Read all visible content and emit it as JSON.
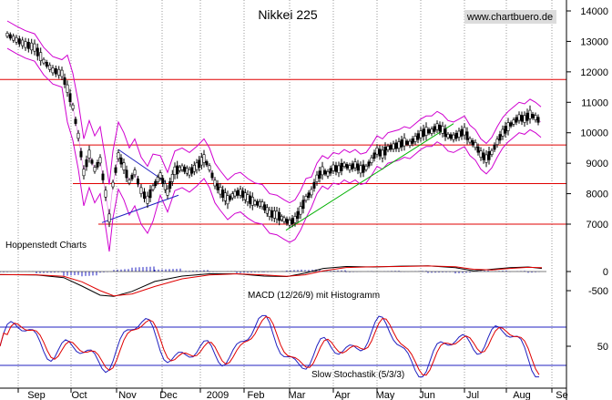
{
  "chart_data": {
    "type": "candlestick",
    "title": "Nikkei 225",
    "source": "www.chartbuero.de",
    "provider": "Hoppenstedt Charts",
    "price_axis": {
      "ticks": [
        7000,
        8000,
        9000,
        10000,
        11000,
        12000,
        13000,
        14000
      ]
    },
    "macd_axis": {
      "ticks": [
        0,
        -500
      ]
    },
    "stoch_axis": {
      "ticks": [
        50
      ]
    },
    "x_labels": [
      "Sep",
      "Oct",
      "Nov",
      "Dec",
      "2009",
      "Feb",
      "Mar",
      "Apr",
      "May",
      "Jun",
      "Jul",
      "Aug",
      "Se"
    ],
    "support_resistance_levels": [
      11750,
      9600,
      8330,
      7000
    ],
    "macd_label": "MACD (12/26/9) mit Histogramm",
    "stoch_label": "Slow Stochastik (5/3/3)",
    "stoch_levels": [
      80,
      20
    ],
    "price_series": [
      [
        8,
        13220
      ],
      [
        18,
        13050
      ],
      [
        28,
        12900
      ],
      [
        38,
        12800
      ],
      [
        48,
        12350
      ],
      [
        58,
        12050
      ],
      [
        68,
        11950
      ],
      [
        74,
        11450
      ],
      [
        80,
        10850
      ],
      [
        86,
        9900
      ],
      [
        92,
        8700
      ],
      [
        98,
        9300
      ],
      [
        104,
        8800
      ],
      [
        110,
        9100
      ],
      [
        116,
        8000
      ],
      [
        120,
        7200
      ],
      [
        124,
        8300
      ],
      [
        130,
        9250
      ],
      [
        136,
        8900
      ],
      [
        142,
        8400
      ],
      [
        148,
        8700
      ],
      [
        155,
        8100
      ],
      [
        162,
        7800
      ],
      [
        168,
        8200
      ],
      [
        176,
        8600
      ],
      [
        184,
        8050
      ],
      [
        192,
        8750
      ],
      [
        200,
        8850
      ],
      [
        208,
        8700
      ],
      [
        216,
        8900
      ],
      [
        224,
        9150
      ],
      [
        230,
        8850
      ],
      [
        236,
        8350
      ],
      [
        242,
        8100
      ],
      [
        250,
        7800
      ],
      [
        258,
        8000
      ],
      [
        264,
        8050
      ],
      [
        272,
        7850
      ],
      [
        280,
        7700
      ],
      [
        288,
        7650
      ],
      [
        296,
        7350
      ],
      [
        304,
        7300
      ],
      [
        312,
        7150
      ],
      [
        318,
        7050
      ],
      [
        324,
        7150
      ],
      [
        330,
        7450
      ],
      [
        336,
        7850
      ],
      [
        342,
        8050
      ],
      [
        348,
        8500
      ],
      [
        354,
        8750
      ],
      [
        360,
        8650
      ],
      [
        366,
        8850
      ],
      [
        372,
        8800
      ],
      [
        378,
        8950
      ],
      [
        384,
        8850
      ],
      [
        390,
        8950
      ],
      [
        396,
        8800
      ],
      [
        402,
        8850
      ],
      [
        408,
        9100
      ],
      [
        414,
        9400
      ],
      [
        420,
        9300
      ],
      [
        426,
        9500
      ],
      [
        432,
        9550
      ],
      [
        438,
        9600
      ],
      [
        444,
        9700
      ],
      [
        450,
        9650
      ],
      [
        456,
        9800
      ],
      [
        462,
        9950
      ],
      [
        468,
        10050
      ],
      [
        474,
        10050
      ],
      [
        480,
        10200
      ],
      [
        486,
        10100
      ],
      [
        492,
        9900
      ],
      [
        498,
        9850
      ],
      [
        504,
        9950
      ],
      [
        510,
        10050
      ],
      [
        516,
        9750
      ],
      [
        522,
        9600
      ],
      [
        528,
        9300
      ],
      [
        534,
        9150
      ],
      [
        540,
        9350
      ],
      [
        546,
        9700
      ],
      [
        552,
        10000
      ],
      [
        558,
        10200
      ],
      [
        564,
        10350
      ],
      [
        570,
        10500
      ],
      [
        576,
        10450
      ],
      [
        582,
        10600
      ],
      [
        588,
        10500
      ],
      [
        594,
        10350
      ]
    ]
  }
}
